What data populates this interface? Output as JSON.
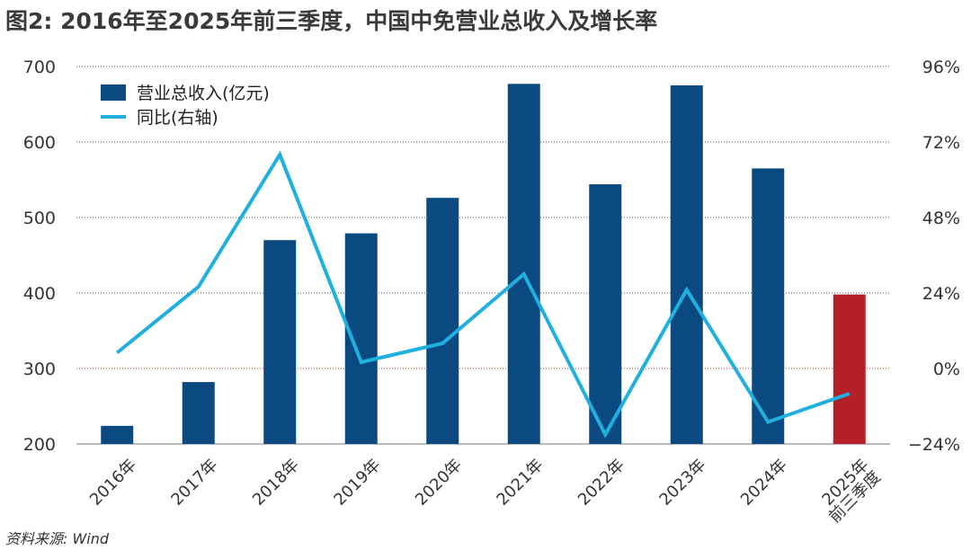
{
  "title": "图2: 2016年至2025年前三季度，中国中免营业总收入及增长率",
  "source": "资料来源: Wind",
  "colors": {
    "bar": "#0b4a80",
    "bar_highlight": "#b32025",
    "line": "#1fb0e0",
    "zero_line": "#c0392b",
    "grid": "#555555"
  },
  "chart_data": {
    "type": "bar",
    "categories": [
      "2016年",
      "2017年",
      "2018年",
      "2019年",
      "2020年",
      "2021年",
      "2022年",
      "2023年",
      "2024年",
      "2025年前三季度"
    ],
    "category_lines": [
      [
        "2016年"
      ],
      [
        "2017年"
      ],
      [
        "2018年"
      ],
      [
        "2019年"
      ],
      [
        "2020年"
      ],
      [
        "2021年"
      ],
      [
        "2022年"
      ],
      [
        "2023年"
      ],
      [
        "2024年"
      ],
      [
        "2025年",
        "前三季度"
      ]
    ],
    "series": [
      {
        "name": "营业总收入(亿元)",
        "type": "bar",
        "axis": "left",
        "values": [
          224,
          282,
          470,
          479,
          526,
          677,
          544,
          675,
          565,
          398
        ]
      },
      {
        "name": "同比(右轴)",
        "type": "line",
        "axis": "right",
        "values": [
          5,
          26,
          68,
          2,
          8,
          30,
          -21,
          25,
          -17,
          -8
        ]
      }
    ],
    "highlight_index": 9,
    "ylim": [
      200,
      700
    ],
    "yticks": [
      200,
      300,
      400,
      500,
      600,
      700
    ],
    "y2lim": [
      -24,
      96
    ],
    "y2ticks": [
      -24,
      0,
      24,
      48,
      72,
      96
    ],
    "y2tick_labels": [
      "−24%",
      "0%",
      "24%",
      "48%",
      "72%",
      "96%"
    ],
    "grid": true,
    "legend_position": "top-left"
  }
}
